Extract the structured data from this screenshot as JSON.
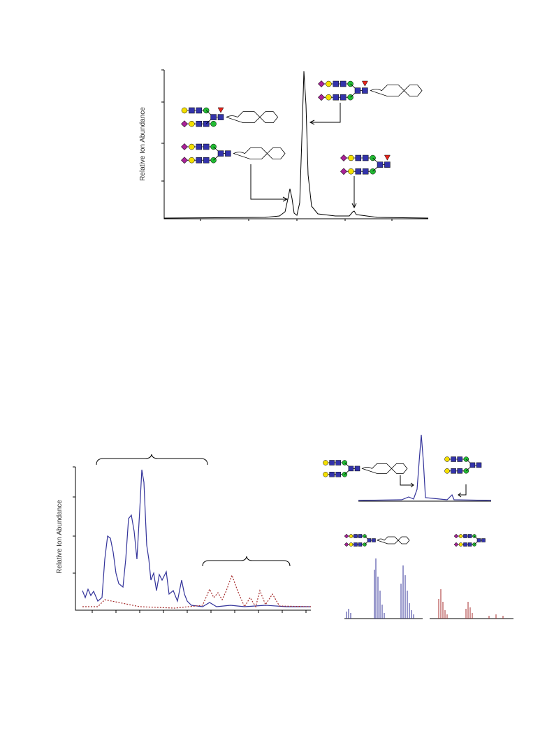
{
  "figure": {
    "top_panel": {
      "y_label": "Relative Ion Abundance"
    },
    "bottom_left_panel": {
      "y_label": "Relative Ion Abundance"
    }
  }
}
